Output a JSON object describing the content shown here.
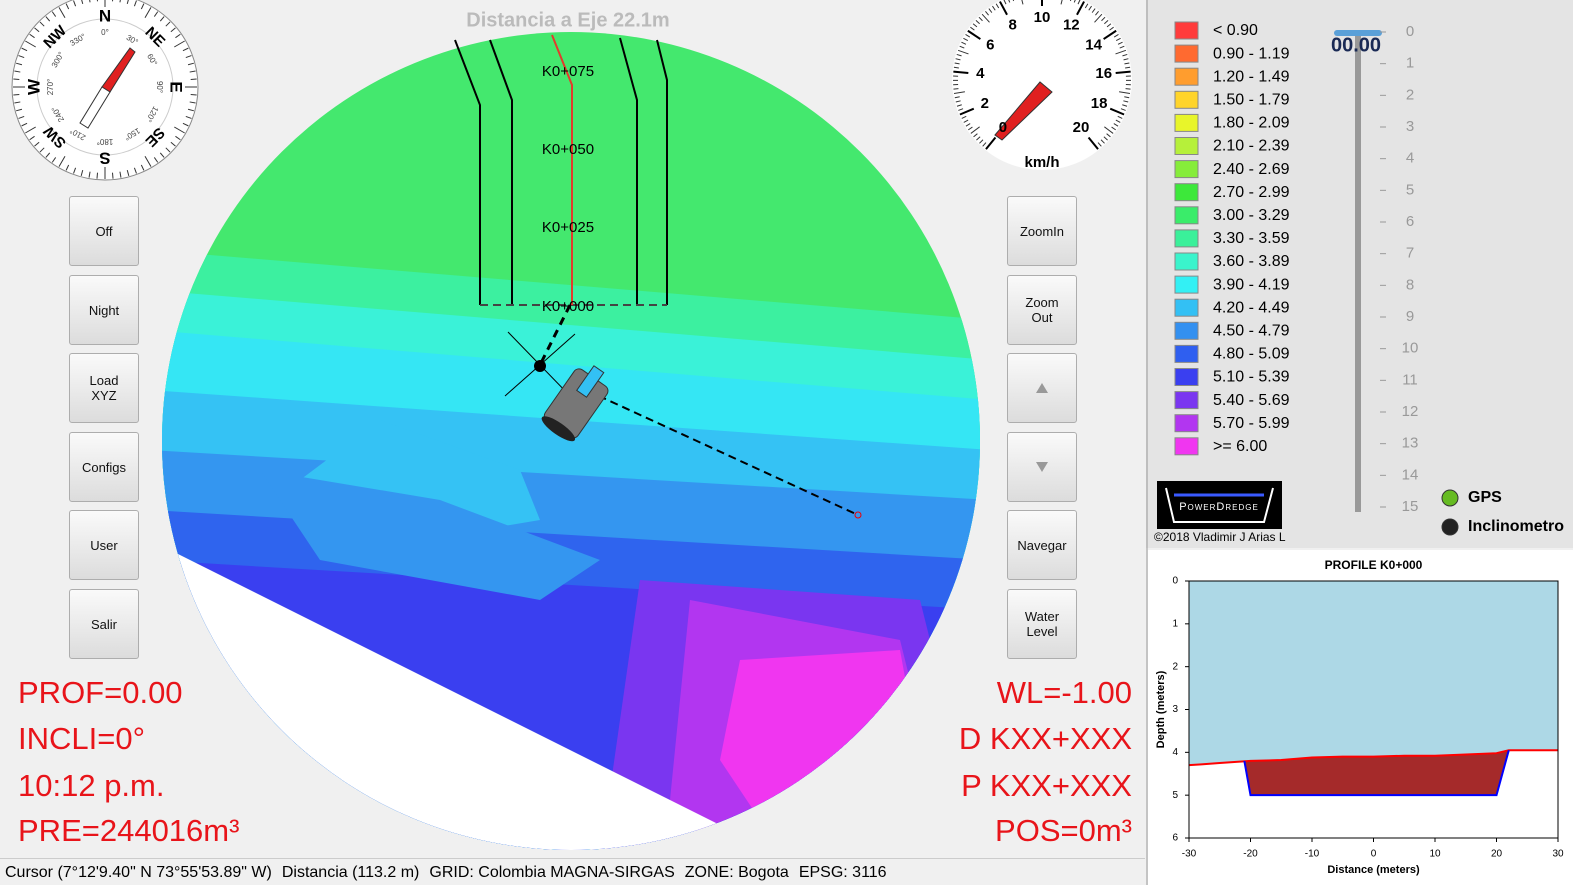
{
  "header": {
    "title": "Distancia a Eje 22.1m"
  },
  "compass": {
    "directions": [
      "N",
      "NE",
      "E",
      "SE",
      "S",
      "SW",
      "W",
      "NW"
    ],
    "degrees": [
      "0°",
      "30°",
      "60°",
      "90°",
      "120°",
      "150°",
      "180°",
      "210°",
      "240°",
      "270°",
      "300°",
      "330°"
    ]
  },
  "speedometer": {
    "ticks": [
      0,
      2,
      4,
      6,
      8,
      10,
      12,
      14,
      16,
      18,
      20
    ],
    "unit": "km/h"
  },
  "left_buttons": [
    "Off",
    "Night",
    "Load XYZ",
    "Configs",
    "User",
    "Salir"
  ],
  "right_buttons": [
    "ZoomIn",
    "Zoom Out",
    "Navegar",
    "Water Level"
  ],
  "left_readouts": [
    "PROF=0.00",
    "INCLI=0°",
    "10:12 p.m.",
    "PRE=244016m³"
  ],
  "right_readouts": [
    "WL=-1.00",
    "D KXX+XXX",
    "P KXX+XXX",
    "POS=0m³"
  ],
  "chainages": [
    "K0+075",
    "K0+050",
    "K0+025",
    "K0+000"
  ],
  "legend": [
    {
      "label": "< 0.90",
      "color": "#ff3b3b"
    },
    {
      "label": "0.90 - 1.19",
      "color": "#ff6a30"
    },
    {
      "label": "1.20 - 1.49",
      "color": "#ff9d2e"
    },
    {
      "label": "1.50 - 1.79",
      "color": "#ffd42a"
    },
    {
      "label": "1.80 - 2.09",
      "color": "#e8f52a"
    },
    {
      "label": "2.10 - 2.39",
      "color": "#b6f03a"
    },
    {
      "label": "2.40 - 2.69",
      "color": "#86ec3a"
    },
    {
      "label": "2.70 - 2.99",
      "color": "#3de83a"
    },
    {
      "label": "3.00 - 3.29",
      "color": "#3aec6a"
    },
    {
      "label": "3.30 - 3.59",
      "color": "#3af09a"
    },
    {
      "label": "3.60 - 3.89",
      "color": "#3af4cc"
    },
    {
      "label": "3.90 - 4.19",
      "color": "#33f0f4"
    },
    {
      "label": "4.20 - 4.49",
      "color": "#33c0f4"
    },
    {
      "label": "4.50 - 4.79",
      "color": "#3390f0"
    },
    {
      "label": "4.80 - 5.09",
      "color": "#2f5ff0"
    },
    {
      "label": "5.10 - 5.39",
      "color": "#3a3ff0"
    },
    {
      "label": "5.40 - 5.69",
      "color": "#7a36f0"
    },
    {
      "label": "5.70 - 5.99",
      "color": "#b236f0"
    },
    {
      "label": ">= 6.00",
      "color": "#f036f0"
    }
  ],
  "depth_gauge": {
    "reading": "00.00",
    "ticks": [
      0,
      1,
      2,
      3,
      4,
      5,
      6,
      7,
      8,
      9,
      10,
      11,
      12,
      13,
      14,
      15
    ]
  },
  "logo": {
    "name": "PowerDredge",
    "copyright": "©2018 Vladimir J Arias L"
  },
  "indicators": [
    {
      "label": "GPS",
      "color": "#66bb22"
    },
    {
      "label": "Inclinometro",
      "color": "#222222"
    }
  ],
  "profile": {
    "title": "PROFILE K0+000",
    "xlabel": "Distance (meters)",
    "ylabel": "Depth (meters)",
    "xlim": [
      -30,
      30
    ],
    "ylim": [
      0,
      6
    ],
    "xticks": [
      -30,
      -20,
      -10,
      0,
      10,
      20,
      30
    ],
    "yticks": [
      0,
      1,
      2,
      3,
      4,
      5,
      6
    ],
    "terrain": {
      "color": "#ff0000",
      "x": [
        -30,
        -28,
        -25,
        -20,
        -15,
        -10,
        -5,
        0,
        5,
        10,
        15,
        20,
        22,
        25,
        30
      ],
      "y": [
        4.3,
        4.28,
        4.25,
        4.2,
        4.18,
        4.12,
        4.1,
        4.1,
        4.08,
        4.08,
        4.05,
        4.02,
        3.95,
        3.95,
        3.95
      ]
    },
    "template": {
      "color": "#0000ff",
      "x": [
        -21,
        -20,
        20,
        22
      ],
      "y": [
        4.2,
        5,
        5,
        3.95
      ]
    }
  },
  "status_bar": [
    "Cursor (7°12'9.40\" N 73°55'53.89\" W)",
    "Distancia (113.2 m)",
    "GRID: Colombia MAGNA-SIRGAS",
    "ZONE: Bogota",
    "EPSG: 3116"
  ]
}
